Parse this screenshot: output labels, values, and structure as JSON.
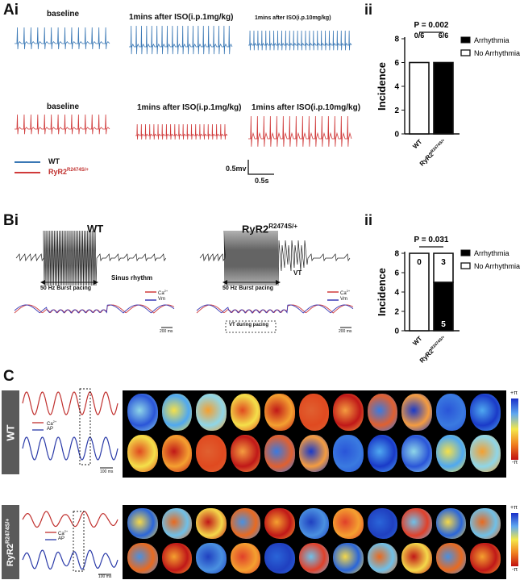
{
  "panel_a": {
    "letter": "Ai",
    "sub_letter": "ii",
    "titles": {
      "wt_baseline": "baseline",
      "wt_iso1": "1mins after ISO(i.p.1mg/kg)",
      "wt_iso10": "1mins after ISO(i.p.10mg/kg)",
      "ryr_baseline": "baseline",
      "ryr_iso1": "1mins after ISO(i.p.1mg/kg)",
      "ryr_iso10": "1mins after ISO(i.p.10mg/kg)"
    },
    "legend": {
      "wt": "WT",
      "ryr": "RyR2",
      "ryr_sup": "R2474S/+"
    },
    "scale": {
      "v": "0.5mv",
      "t": "0.5s"
    },
    "colors": {
      "wt": "#3a78b5",
      "ryr": "#d03a3a"
    }
  },
  "panel_b": {
    "letter": "Bi",
    "sub_letter": "ii",
    "wt_title": "WT",
    "ryr_title": "RyR2",
    "ryr_title_sup": "R2474S/+",
    "burst_label_wt": "50 Hz Burst pacing",
    "burst_label_ryr": "50 Hz Burst pacing",
    "sinus_label": "Sinus rhythm",
    "vt_label": "VT",
    "vt_pacing_label": "VT during pacing",
    "legend_ca": "Ca",
    "legend_ca_sup": "2+",
    "legend_vm": "Vm",
    "scale_label": "200 ms",
    "colors": {
      "ca": "#d03a3a",
      "vm": "#3a3ab5"
    }
  },
  "panel_c": {
    "letter": "C",
    "wt_label": "WT",
    "ryr_label": "RyR2",
    "ryr_label_sup": "R2474S/+",
    "legend_ca": "Ca",
    "legend_ca_sup": "2+",
    "legend_ap": "AP",
    "scale_label": "100 ms",
    "colorbar_top": "+π",
    "colorbar_bottom": "-π",
    "colors": {
      "ca": "#c0302e",
      "ap": "#2a3aa8"
    }
  },
  "chart_data": [
    {
      "type": "bar",
      "title": "P = 0.002",
      "categories": [
        "WT",
        "RyR2R2474S/+"
      ],
      "ylabel": "Incidence",
      "ylim": [
        0,
        8
      ],
      "yticks": [
        0,
        2,
        4,
        6,
        8
      ],
      "series": [
        {
          "name": "Arrhythmia",
          "values": [
            0,
            6
          ]
        },
        {
          "name": "No Arrhythmia",
          "values": [
            6,
            0
          ]
        }
      ],
      "bar_labels": [
        "0/6",
        "6/6"
      ],
      "legend_position": "top-right"
    },
    {
      "type": "bar",
      "title": "P = 0.031",
      "categories": [
        "WT",
        "RyR2R2474S/+"
      ],
      "ylabel": "Incidence",
      "ylim": [
        0,
        8
      ],
      "yticks": [
        0,
        2,
        4,
        6,
        8
      ],
      "series": [
        {
          "name": "Arrhythmia",
          "values": [
            0,
            5
          ]
        },
        {
          "name": "No Arrhythmia",
          "values": [
            8,
            3
          ]
        }
      ],
      "segment_labels": {
        "wt_top": "0",
        "ryr_top": "3",
        "ryr_bottom": "5"
      },
      "legend_position": "top-right"
    }
  ]
}
